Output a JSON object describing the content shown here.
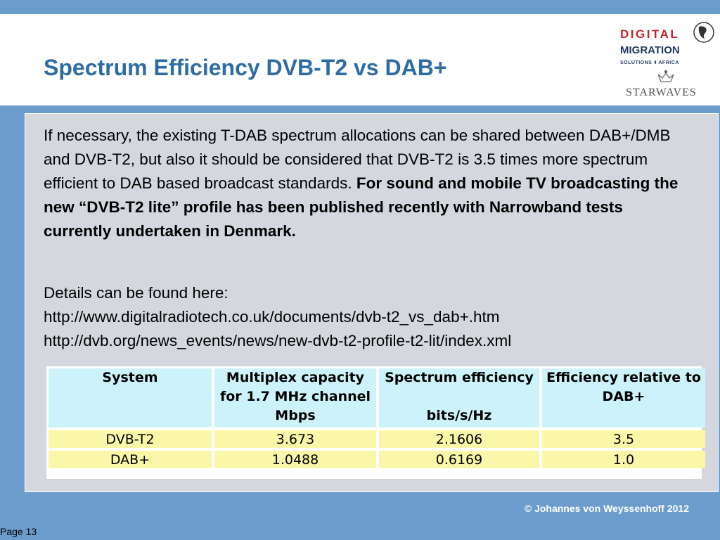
{
  "slide": {
    "title": "Spectrum Efficiency DVB-T2 vs DAB+",
    "paragraph_regular": "If necessary, the existing T-DAB spectrum allocations can be shared between DAB+/DMB and DVB-T2, but also it should be considered that DVB-T2 is 3.5 times more spectrum efficient to DAB based broadcast standards. ",
    "paragraph_bold": "For sound and mobile TV broadcasting the new “DVB-T2 lite” profile has been published recently with Narrowband tests currently undertaken in Denmark.",
    "details_label": "Details can be found here:",
    "links": [
      "http://www.digitalradiotech.co.uk/documents/dvb-t2_vs_dab+.htm",
      "http://dvb.org/news_events/news/new-dvb-t2-profile-t2-lit/index.xml"
    ],
    "footer": "© Johannes von Weyssenhoff 2012",
    "page_label": "Page 13"
  },
  "logo": {
    "line1": "DIGITAL",
    "line2": "MIGRATION",
    "line3": "SOLUTIONS 4 AFRICA",
    "brand": "STARWAVES"
  },
  "table": {
    "headers": [
      [
        "System"
      ],
      [
        "Multiplex capacity",
        "for 1.7 MHz channel",
        "Mbps"
      ],
      [
        "Spectrum efficiency",
        "",
        "bits/s/Hz"
      ],
      [
        "Efficiency relative to",
        "DAB+"
      ]
    ],
    "rows": [
      [
        "DVB-T2",
        "3.673",
        "2.1606",
        "3.5"
      ],
      [
        "DAB+",
        "1.0488",
        "0.6169",
        "1.0"
      ]
    ]
  },
  "colors": {
    "background": "#6b9ccc",
    "title": "#2e6da4",
    "header_cell": "#ccf2fc",
    "data_cell": "#faf8a8"
  }
}
